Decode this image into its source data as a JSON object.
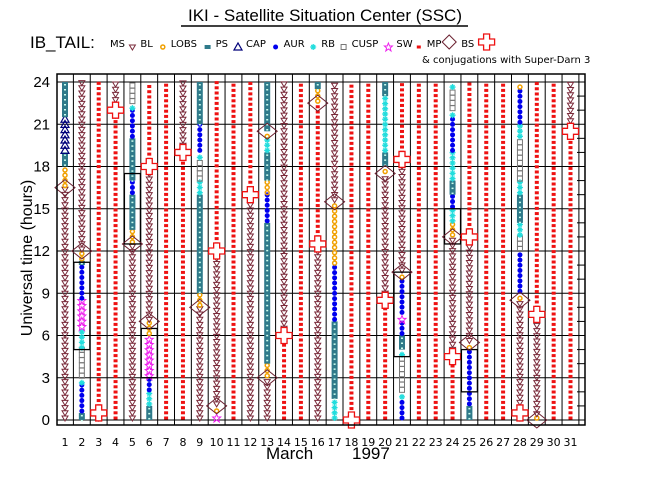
{
  "chart_data": {
    "type": "scatter",
    "title": "IKI - Satellite Situation Center (SSC)",
    "satellite_label": "IB_TAIL:",
    "legend": [
      {
        "key": "MS",
        "symbol": "triangle-down",
        "color": "#7a2a3a"
      },
      {
        "key": "BL",
        "symbol": "sun",
        "color": "#f0a000"
      },
      {
        "key": "LOBS",
        "symbol": "small-square",
        "color": "#2f7a8a"
      },
      {
        "key": "PS",
        "symbol": "triangle-up",
        "color": "#00007a"
      },
      {
        "key": "CAP",
        "symbol": "dot",
        "color": "#0000ee"
      },
      {
        "key": "AUR",
        "symbol": "asterisk",
        "color": "#22dddd"
      },
      {
        "key": "RB",
        "symbol": "open-square",
        "color": "#777777"
      },
      {
        "key": "CUSP",
        "symbol": "star",
        "color": "#ee22ee"
      },
      {
        "key": "SW",
        "symbol": "bug",
        "color": "#ee1111"
      },
      {
        "key": "MP",
        "symbol": "diamond",
        "color": "#6a2030"
      },
      {
        "key": "BS",
        "symbol": "cross",
        "color": "#ee1111"
      }
    ],
    "legend_note": "& conjugations with Super-Darn 3",
    "xlabel": "March",
    "xlabel_year": "1997",
    "ylabel": "Universal time (hours)",
    "x_ticks": [
      "1",
      "2",
      "3",
      "4",
      "5",
      "6",
      "7",
      "8",
      "9",
      "10",
      "11",
      "12",
      "13",
      "14",
      "15",
      "16",
      "17",
      "18",
      "19",
      "20",
      "21",
      "22",
      "23",
      "24",
      "25",
      "26",
      "27",
      "28",
      "29",
      "30",
      "31"
    ],
    "y_ticks": [
      0,
      3,
      6,
      9,
      12,
      15,
      18,
      21,
      24
    ],
    "ylim": [
      0,
      24
    ],
    "xlim": [
      1,
      31
    ],
    "grid": true,
    "days": [
      {
        "day": 1,
        "segments": [
          [
            "MS",
            0,
            16.5
          ],
          [
            "BL",
            16.5,
            18
          ],
          [
            "LOBS",
            18,
            19
          ],
          [
            "PS",
            19,
            21.5
          ],
          [
            "LOBS",
            21.5,
            24
          ]
        ],
        "mp": [
          16.5
        ],
        "bs": [],
        "boxes": []
      },
      {
        "day": 2,
        "segments": [
          [
            "LOBS",
            0,
            0.5
          ],
          [
            "CAP",
            0.5,
            2.5
          ],
          [
            "AUR",
            2.5,
            3
          ],
          [
            "RB",
            3,
            5
          ],
          [
            "AUR",
            5,
            6.5
          ],
          [
            "CUSP",
            6.5,
            8.5
          ],
          [
            "CAP",
            8.5,
            11
          ],
          [
            "LOBS",
            11,
            11.3
          ],
          [
            "BL",
            11.3,
            12
          ],
          [
            "MS",
            12,
            24
          ]
        ],
        "mp": [
          12
        ],
        "bs": [],
        "boxes": [
          [
            5,
            11.2
          ]
        ]
      },
      {
        "day": 3,
        "segments": [
          [
            "MS",
            0,
            0.5
          ],
          [
            "SW",
            0.5,
            24
          ]
        ],
        "mp": [],
        "bs": [
          0.5
        ],
        "boxes": []
      },
      {
        "day": 4,
        "segments": [
          [
            "SW",
            0,
            21.5
          ],
          [
            "MS",
            21.5,
            24
          ]
        ],
        "mp": [],
        "bs": [
          22
        ],
        "boxes": []
      },
      {
        "day": 5,
        "segments": [
          [
            "MS",
            0,
            12.5
          ],
          [
            "BL",
            12.5,
            13.5
          ],
          [
            "LOBS",
            13.5,
            16
          ],
          [
            "CAP",
            16,
            17
          ],
          [
            "LOBS",
            17,
            20
          ],
          [
            "CAP",
            20,
            22
          ],
          [
            "AUR",
            22,
            22.5
          ],
          [
            "RB",
            22.5,
            24
          ]
        ],
        "mp": [
          12.5
        ],
        "bs": [],
        "boxes": [
          [
            12.5,
            17.5
          ]
        ]
      },
      {
        "day": 6,
        "segments": [
          [
            "LOBS",
            0,
            1
          ],
          [
            "AUR",
            1,
            2
          ],
          [
            "CAP",
            2,
            3
          ],
          [
            "CUSP",
            3,
            6
          ],
          [
            "BL",
            6,
            7
          ],
          [
            "MS",
            7,
            18
          ],
          [
            "SW",
            18,
            24
          ]
        ],
        "mp": [
          7
        ],
        "bs": [
          18
        ],
        "boxes": [
          [
            3,
            6.5
          ]
        ]
      },
      {
        "day": 7,
        "segments": [
          [
            "SW",
            0,
            24
          ]
        ],
        "mp": [],
        "bs": [],
        "boxes": []
      },
      {
        "day": 8,
        "segments": [
          [
            "SW",
            0,
            19
          ],
          [
            "MS",
            19,
            24
          ]
        ],
        "mp": [],
        "bs": [
          19
        ],
        "boxes": []
      },
      {
        "day": 9,
        "segments": [
          [
            "MS",
            0,
            8
          ],
          [
            "BL",
            8,
            9
          ],
          [
            "LOBS",
            9,
            16
          ],
          [
            "AUR",
            16,
            17
          ],
          [
            "RB",
            17,
            18.5
          ],
          [
            "AUR",
            18.5,
            19
          ],
          [
            "CAP",
            19,
            21
          ],
          [
            "LOBS",
            21,
            24
          ]
        ],
        "mp": [
          8
        ],
        "bs": [],
        "boxes": []
      },
      {
        "day": 10,
        "segments": [
          [
            "CUSP",
            0,
            0.5
          ],
          [
            "BL",
            0.5,
            1
          ],
          [
            "MS",
            1,
            12
          ],
          [
            "SW",
            12,
            24
          ]
        ],
        "mp": [
          1
        ],
        "bs": [
          12
        ],
        "boxes": []
      },
      {
        "day": 11,
        "segments": [
          [
            "SW",
            0,
            24
          ]
        ],
        "mp": [],
        "bs": [],
        "boxes": []
      },
      {
        "day": 12,
        "segments": [
          [
            "MS",
            0,
            16
          ],
          [
            "SW",
            16,
            24
          ]
        ],
        "mp": [],
        "bs": [
          16
        ],
        "boxes": []
      },
      {
        "day": 13,
        "segments": [
          [
            "MS",
            0,
            3
          ],
          [
            "BL",
            3,
            4
          ],
          [
            "LOBS",
            4,
            14
          ],
          [
            "CAP",
            14,
            16
          ],
          [
            "BL",
            16,
            17
          ],
          [
            "LOBS",
            17,
            19
          ],
          [
            "AUR",
            19,
            20
          ],
          [
            "BL",
            20,
            20.5
          ],
          [
            "LOBS",
            20.5,
            24
          ]
        ],
        "mp": [
          3,
          20.5
        ],
        "bs": [],
        "boxes": []
      },
      {
        "day": 14,
        "segments": [
          [
            "SW",
            0,
            6
          ],
          [
            "MS",
            6,
            24
          ]
        ],
        "mp": [],
        "bs": [
          6
        ],
        "boxes": []
      },
      {
        "day": 15,
        "segments": [
          [
            "SW",
            0,
            24
          ]
        ],
        "mp": [],
        "bs": [],
        "boxes": []
      },
      {
        "day": 16,
        "segments": [
          [
            "MS",
            0,
            12.5
          ],
          [
            "SW",
            12.5,
            22.5
          ],
          [
            "BL",
            22.5,
            23.5
          ],
          [
            "LOBS",
            23.5,
            24
          ]
        ],
        "mp": [
          22.5
        ],
        "bs": [
          12.5
        ],
        "boxes": []
      },
      {
        "day": 17,
        "segments": [
          [
            "AUR",
            0,
            1.5
          ],
          [
            "LOBS",
            1.5,
            7
          ],
          [
            "CAP",
            7,
            11
          ],
          [
            "BL",
            11,
            15.5
          ],
          [
            "MS",
            15.5,
            24
          ]
        ],
        "mp": [
          15.5
        ],
        "bs": [],
        "boxes": []
      },
      {
        "day": 18,
        "segments": [
          [
            "MS",
            0,
            0.3
          ],
          [
            "SW",
            0.3,
            24
          ]
        ],
        "mp": [],
        "bs": [
          0
        ],
        "boxes": []
      },
      {
        "day": 19,
        "segments": [
          [
            "SW",
            0,
            24
          ]
        ],
        "mp": [],
        "bs": [],
        "boxes": []
      },
      {
        "day": 20,
        "segments": [
          [
            "SW",
            0,
            8.5
          ],
          [
            "MS",
            8.5,
            17.5
          ],
          [
            "BL",
            17.5,
            18
          ],
          [
            "LOBS",
            18,
            19
          ],
          [
            "AUR",
            19,
            23
          ],
          [
            "LOBS",
            23,
            24
          ]
        ],
        "mp": [
          17.5
        ],
        "bs": [
          8.5
        ],
        "boxes": []
      },
      {
        "day": 21,
        "segments": [
          [
            "CAP",
            0,
            1.5
          ],
          [
            "AUR",
            1.5,
            2
          ],
          [
            "RB",
            2,
            4.5
          ],
          [
            "AUR",
            4.5,
            5
          ],
          [
            "LOBS",
            5,
            6
          ],
          [
            "CAP",
            6,
            7
          ],
          [
            "CUSP",
            7,
            7.5
          ],
          [
            "CAP",
            7.5,
            10
          ],
          [
            "BL",
            10,
            10.5
          ],
          [
            "MS",
            10.5,
            18.5
          ],
          [
            "SW",
            18.5,
            24
          ]
        ],
        "mp": [
          10.5
        ],
        "bs": [
          18.5
        ],
        "boxes": [
          [
            4.5,
            10.5
          ]
        ]
      },
      {
        "day": 22,
        "segments": [
          [
            "SW",
            0,
            24
          ]
        ],
        "mp": [],
        "bs": [],
        "boxes": []
      },
      {
        "day": 23,
        "segments": [
          [
            "SW",
            0,
            24
          ]
        ],
        "mp": [],
        "bs": [],
        "boxes": []
      },
      {
        "day": 24,
        "segments": [
          [
            "SW",
            0,
            4.5
          ],
          [
            "MS",
            4.5,
            13
          ],
          [
            "BL",
            13,
            14
          ],
          [
            "AUR",
            14,
            15
          ],
          [
            "CAP",
            15,
            16
          ],
          [
            "LOBS",
            16,
            17
          ],
          [
            "AUR",
            17,
            19
          ],
          [
            "CAP",
            19,
            21.5
          ],
          [
            "AUR",
            21.5,
            22
          ],
          [
            "RB",
            22,
            23.5
          ],
          [
            "AUR",
            23.5,
            24
          ]
        ],
        "mp": [
          13
        ],
        "bs": [
          4.5
        ],
        "boxes": [
          [
            12.5,
            15
          ]
        ]
      },
      {
        "day": 25,
        "segments": [
          [
            "LOBS",
            0,
            1
          ],
          [
            "CAP",
            1,
            5
          ],
          [
            "BL",
            5,
            5.5
          ],
          [
            "MS",
            5.5,
            13
          ],
          [
            "SW",
            13,
            24
          ]
        ],
        "mp": [
          5.5
        ],
        "bs": [
          13
        ],
        "boxes": [
          [
            2,
            5
          ]
        ]
      },
      {
        "day": 26,
        "segments": [
          [
            "SW",
            0,
            24
          ]
        ],
        "mp": [],
        "bs": [],
        "boxes": []
      },
      {
        "day": 27,
        "segments": [
          [
            "SW",
            0,
            24
          ]
        ],
        "mp": [],
        "bs": [],
        "boxes": []
      },
      {
        "day": 28,
        "segments": [
          [
            "MS",
            0,
            8.5
          ],
          [
            "BL",
            8.5,
            9
          ],
          [
            "CAP",
            9,
            12
          ],
          [
            "RB",
            12,
            13
          ],
          [
            "AUR",
            13,
            14
          ],
          [
            "LOBS",
            14,
            16
          ],
          [
            "AUR",
            16,
            17
          ],
          [
            "RB",
            17,
            20
          ],
          [
            "AUR",
            20,
            21
          ],
          [
            "CAP",
            21,
            23.5
          ],
          [
            "BL",
            23.5,
            24
          ]
        ],
        "mp": [
          8.5
        ],
        "bs": [
          0.5
        ],
        "boxes": []
      },
      {
        "day": 29,
        "segments": [
          [
            "BL",
            0,
            0.3
          ],
          [
            "MS",
            0.3,
            7.5
          ],
          [
            "SW",
            7.5,
            24
          ]
        ],
        "mp": [
          0
        ],
        "bs": [
          7.5
        ],
        "boxes": []
      },
      {
        "day": 30,
        "segments": [
          [
            "SW",
            0,
            24
          ]
        ],
        "mp": [],
        "bs": [],
        "boxes": []
      },
      {
        "day": 31,
        "segments": [
          [
            "SW",
            0,
            20
          ],
          [
            "MS",
            20,
            24
          ]
        ],
        "mp": [],
        "bs": [
          20.5
        ],
        "boxes": []
      }
    ]
  }
}
